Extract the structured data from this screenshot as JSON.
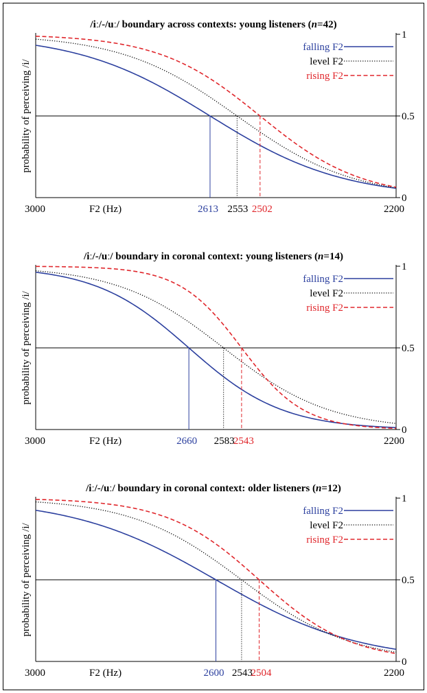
{
  "chart_data": [
    {
      "type": "line",
      "title_pre": "/iː/-/uː/ boundary across contexts: young listeners (",
      "title_n": "n",
      "title_post": "=42)",
      "xlabel": "F2 (Hz)",
      "ylabel": "probability of perceiving /i/",
      "x_tick_left": "3000",
      "x_tick_right": "2200",
      "xlim": [
        3000,
        2200
      ],
      "ylim": [
        0,
        1
      ],
      "y_ticks": [
        "0",
        "0.5",
        "1"
      ],
      "reference_line_y": 0.5,
      "legend_position": "top-right",
      "series": [
        {
          "name": "falling F2",
          "color": "#2b3f9e",
          "dash": "solid",
          "boundary": 2613,
          "boundary_label": "2613",
          "steepness": 0.0068
        },
        {
          "name": "level F2",
          "color": "#000000",
          "dash": "dotted",
          "boundary": 2553,
          "boundary_label": "2553",
          "steepness": 0.0078
        },
        {
          "name": "rising F2",
          "color": "#e0262b",
          "dash": "dashed",
          "boundary": 2502,
          "boundary_label": "2502",
          "steepness": 0.0089
        }
      ]
    },
    {
      "type": "line",
      "title_pre": "/iː/-/uː/ boundary in coronal context: young listeners (",
      "title_n": "n",
      "title_post": "=14)",
      "xlabel": "F2 (Hz)",
      "ylabel": "probability of perceiving /i/",
      "x_tick_left": "3000",
      "x_tick_right": "2200",
      "xlim": [
        3000,
        2200
      ],
      "ylim": [
        0,
        1
      ],
      "y_ticks": [
        "0",
        "0.5",
        "1"
      ],
      "reference_line_y": 0.5,
      "legend_position": "top-right",
      "series": [
        {
          "name": "falling F2",
          "color": "#2b3f9e",
          "dash": "solid",
          "boundary": 2660,
          "boundary_label": "2660",
          "steepness": 0.0096
        },
        {
          "name": "level F2",
          "color": "#000000",
          "dash": "dotted",
          "boundary": 2583,
          "boundary_label": "2583",
          "steepness": 0.0085
        },
        {
          "name": "rising F2",
          "color": "#e0262b",
          "dash": "dashed",
          "boundary": 2543,
          "boundary_label": "2543",
          "steepness": 0.0145
        }
      ]
    },
    {
      "type": "line",
      "title_pre": "/iː/-/uː/ boundary in coronal context: older listeners (",
      "title_n": "n",
      "title_post": "=12)",
      "xlabel": "F2 (Hz)",
      "ylabel": "probability of perceiving /i/",
      "x_tick_left": "3000",
      "x_tick_right": "2200",
      "xlim": [
        3000,
        2200
      ],
      "ylim": [
        0,
        1
      ],
      "y_ticks": [
        "0",
        "0.5",
        "1"
      ],
      "reference_line_y": 0.5,
      "legend_position": "top-right",
      "series": [
        {
          "name": "falling F2",
          "color": "#2b3f9e",
          "dash": "solid",
          "boundary": 2600,
          "boundary_label": "2600",
          "steepness": 0.0063
        },
        {
          "name": "level F2",
          "color": "#000000",
          "dash": "dotted",
          "boundary": 2543,
          "boundary_label": "2543",
          "steepness": 0.0082
        },
        {
          "name": "rising F2",
          "color": "#e0262b",
          "dash": "dashed",
          "boundary": 2504,
          "boundary_label": "2504",
          "steepness": 0.0098
        }
      ]
    }
  ]
}
